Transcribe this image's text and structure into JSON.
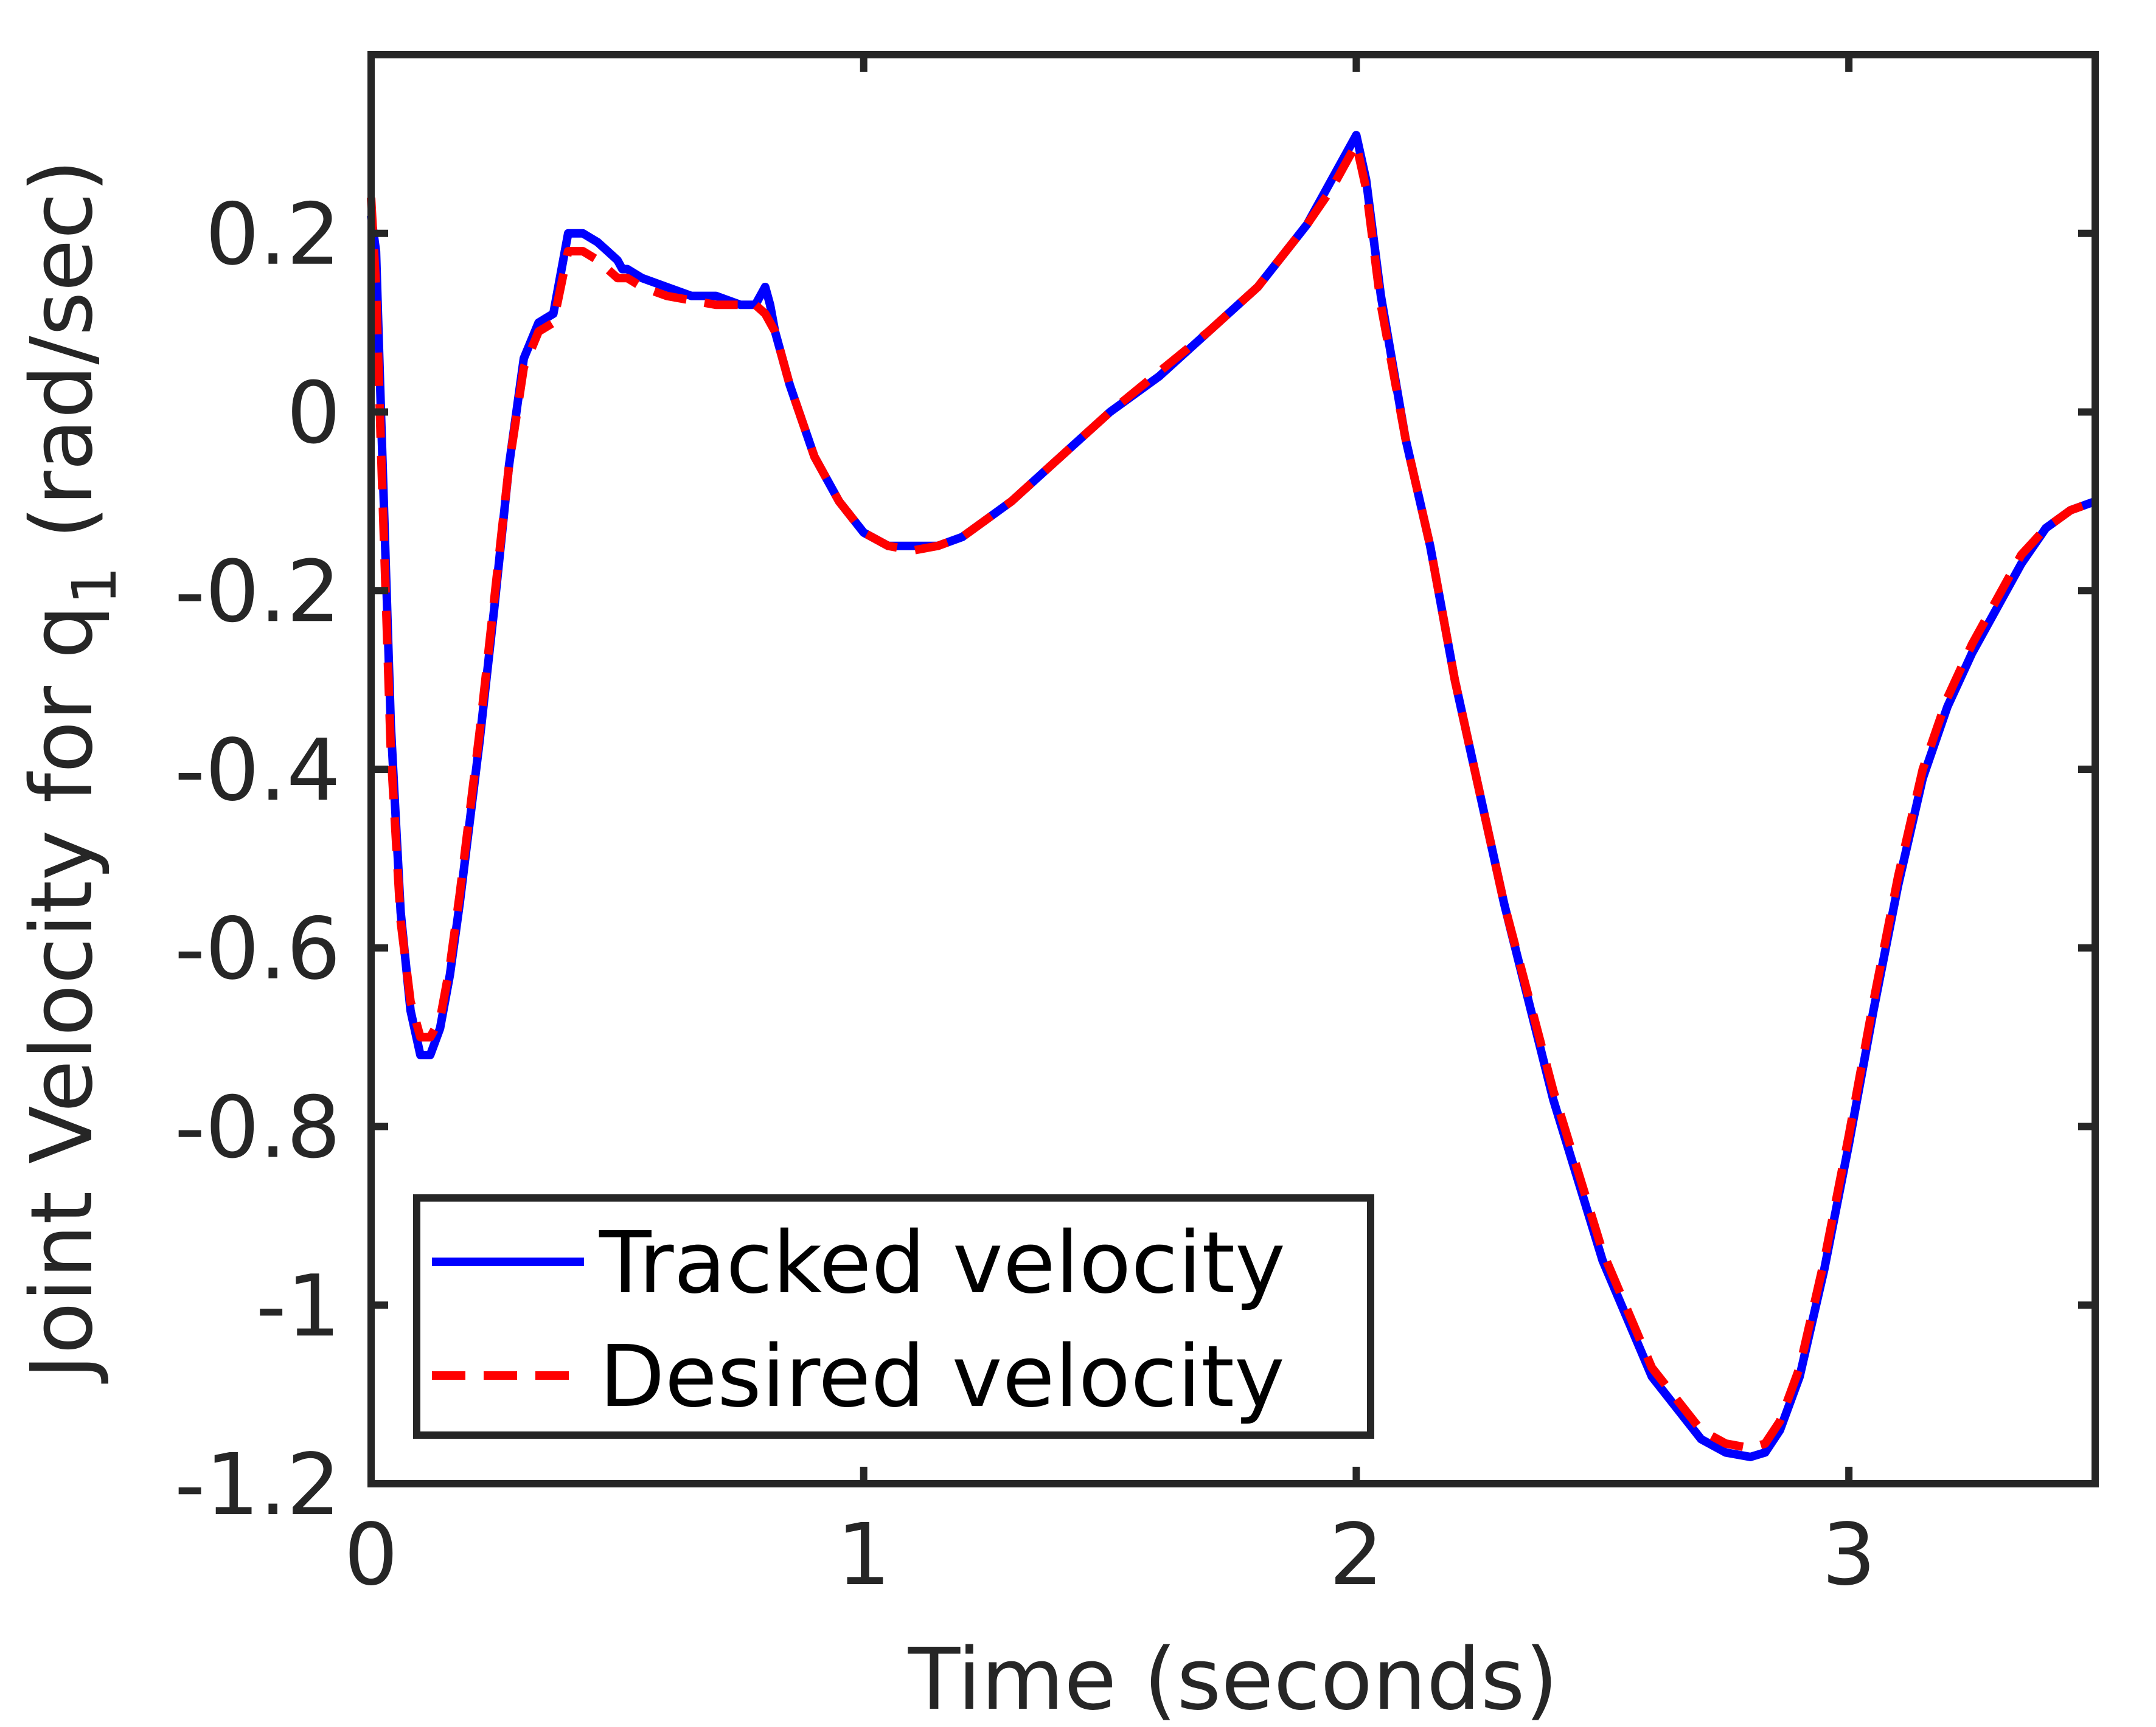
{
  "chart_data": {
    "type": "line",
    "title": "",
    "xlabel": "Time (seconds)",
    "ylabel": "Joint Velocity for q",
    "ylabel_subscript": "1",
    "ylabel_units": " (rad/sec)",
    "xlim": [
      0,
      3.5
    ],
    "ylim": [
      -1.2,
      0.4
    ],
    "xticks": [
      0,
      1,
      2,
      3
    ],
    "xtick_labels": [
      "0",
      "1",
      "2",
      "3"
    ],
    "yticks": [
      -1.2,
      -1.0,
      -0.8,
      -0.6,
      -0.4,
      -0.2,
      0,
      0.2
    ],
    "ytick_labels": [
      "-1.2",
      "-1",
      "-0.8",
      "-0.6",
      "-0.4",
      "-0.2",
      "0",
      "0.2"
    ],
    "grid": false,
    "legend_position": "bottom-left",
    "series": [
      {
        "name": "Tracked velocity",
        "color": "#0000ff",
        "style": "solid",
        "x": [
          0,
          0.01,
          0.02,
          0.04,
          0.06,
          0.08,
          0.1,
          0.12,
          0.14,
          0.16,
          0.18,
          0.2,
          0.22,
          0.25,
          0.28,
          0.31,
          0.34,
          0.37,
          0.4,
          0.43,
          0.46,
          0.48,
          0.5,
          0.51,
          0.52,
          0.55,
          0.6,
          0.65,
          0.7,
          0.75,
          0.78,
          0.8,
          0.81,
          0.82,
          0.85,
          0.9,
          0.95,
          1.0,
          1.05,
          1.1,
          1.15,
          1.2,
          1.25,
          1.3,
          1.4,
          1.5,
          1.6,
          1.7,
          1.8,
          1.9,
          1.95,
          1.98,
          2.0,
          2.02,
          2.05,
          2.1,
          2.15,
          2.2,
          2.3,
          2.4,
          2.5,
          2.6,
          2.7,
          2.75,
          2.8,
          2.83,
          2.86,
          2.9,
          2.95,
          3.0,
          3.05,
          3.1,
          3.15,
          3.2,
          3.25,
          3.3,
          3.35,
          3.4,
          3.45,
          3.5
        ],
        "values": [
          0.22,
          0.18,
          0.0,
          -0.35,
          -0.56,
          -0.67,
          -0.72,
          -0.72,
          -0.69,
          -0.63,
          -0.55,
          -0.46,
          -0.37,
          -0.22,
          -0.06,
          0.06,
          0.1,
          0.11,
          0.2,
          0.2,
          0.19,
          0.18,
          0.17,
          0.16,
          0.16,
          0.15,
          0.14,
          0.13,
          0.13,
          0.12,
          0.12,
          0.14,
          0.12,
          0.09,
          0.03,
          -0.05,
          -0.1,
          -0.135,
          -0.15,
          -0.15,
          -0.15,
          -0.14,
          -0.12,
          -0.1,
          -0.05,
          0.0,
          0.04,
          0.09,
          0.14,
          0.21,
          0.26,
          0.29,
          0.31,
          0.26,
          0.13,
          -0.03,
          -0.15,
          -0.3,
          -0.55,
          -0.77,
          -0.95,
          -1.08,
          -1.15,
          -1.165,
          -1.17,
          -1.165,
          -1.14,
          -1.08,
          -0.96,
          -0.82,
          -0.67,
          -0.53,
          -0.41,
          -0.33,
          -0.27,
          -0.22,
          -0.17,
          -0.13,
          -0.11,
          -0.1
        ]
      },
      {
        "name": "Desired velocity",
        "color": "#ff0000",
        "style": "dashed",
        "x": [
          0,
          0.01,
          0.02,
          0.04,
          0.06,
          0.08,
          0.1,
          0.12,
          0.14,
          0.16,
          0.18,
          0.2,
          0.22,
          0.25,
          0.28,
          0.31,
          0.34,
          0.37,
          0.4,
          0.43,
          0.46,
          0.48,
          0.5,
          0.52,
          0.55,
          0.6,
          0.65,
          0.7,
          0.75,
          0.78,
          0.8,
          0.82,
          0.85,
          0.9,
          0.95,
          1.0,
          1.05,
          1.1,
          1.15,
          1.2,
          1.25,
          1.3,
          1.4,
          1.5,
          1.6,
          1.7,
          1.8,
          1.9,
          1.95,
          1.98,
          2.0,
          2.02,
          2.05,
          2.1,
          2.15,
          2.2,
          2.3,
          2.4,
          2.5,
          2.6,
          2.7,
          2.75,
          2.8,
          2.83,
          2.86,
          2.9,
          2.95,
          3.0,
          3.05,
          3.1,
          3.15,
          3.2,
          3.25,
          3.3,
          3.35,
          3.4,
          3.45,
          3.5
        ],
        "values": [
          0.24,
          0.14,
          -0.04,
          -0.38,
          -0.57,
          -0.66,
          -0.7,
          -0.7,
          -0.68,
          -0.62,
          -0.54,
          -0.45,
          -0.36,
          -0.21,
          -0.06,
          0.05,
          0.09,
          0.1,
          0.18,
          0.18,
          0.17,
          0.16,
          0.15,
          0.15,
          0.14,
          0.13,
          0.125,
          0.12,
          0.12,
          0.12,
          0.11,
          0.09,
          0.03,
          -0.05,
          -0.1,
          -0.135,
          -0.15,
          -0.155,
          -0.15,
          -0.14,
          -0.12,
          -0.1,
          -0.05,
          0.0,
          0.045,
          0.09,
          0.14,
          0.21,
          0.25,
          0.28,
          0.3,
          0.25,
          0.12,
          -0.03,
          -0.15,
          -0.3,
          -0.55,
          -0.76,
          -0.94,
          -1.07,
          -1.14,
          -1.155,
          -1.16,
          -1.155,
          -1.13,
          -1.07,
          -0.95,
          -0.81,
          -0.66,
          -0.52,
          -0.4,
          -0.32,
          -0.26,
          -0.21,
          -0.16,
          -0.13,
          -0.11,
          -0.1
        ]
      }
    ]
  }
}
